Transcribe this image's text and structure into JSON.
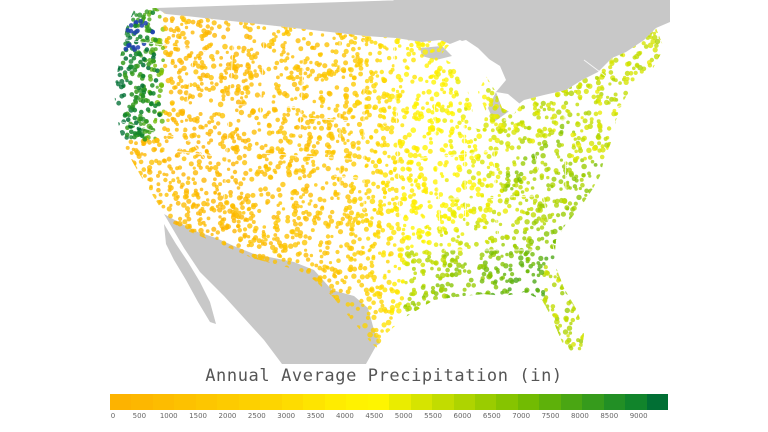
{
  "title": "Annual Average Precipitation (in)",
  "colors": {
    "background": "#ffffff",
    "land_outside": "#c8c8c8",
    "state_borders": "#ffffff",
    "scale": [
      "#fdb300",
      "#fdb700",
      "#fdbc00",
      "#fdc100",
      "#fdc600",
      "#fdcb00",
      "#fdd000",
      "#fdd500",
      "#fedc00",
      "#fee400",
      "#ffec00",
      "#fff200",
      "#fef500",
      "#eaec00",
      "#d6e400",
      "#c2dc00",
      "#aed400",
      "#9acc00",
      "#86c400",
      "#72bb02",
      "#5eb10a",
      "#4aa613",
      "#369b1c",
      "#228f25",
      "#11842b",
      "#016f34"
    ]
  },
  "legend": {
    "tick_labels": [
      "0",
      "500",
      "1000",
      "1500",
      "2000",
      "2500",
      "3000",
      "3500",
      "4000",
      "4500",
      "5000",
      "5500",
      "6000",
      "6500",
      "7000",
      "7500",
      "8000",
      "8500",
      "9000"
    ],
    "min": 0,
    "max": 9500
  },
  "map": {
    "region": "contiguous-us",
    "graphic": "station-dot-map",
    "pattern": "dry-west-to-wet-southeast-and-pacific-northwest"
  }
}
